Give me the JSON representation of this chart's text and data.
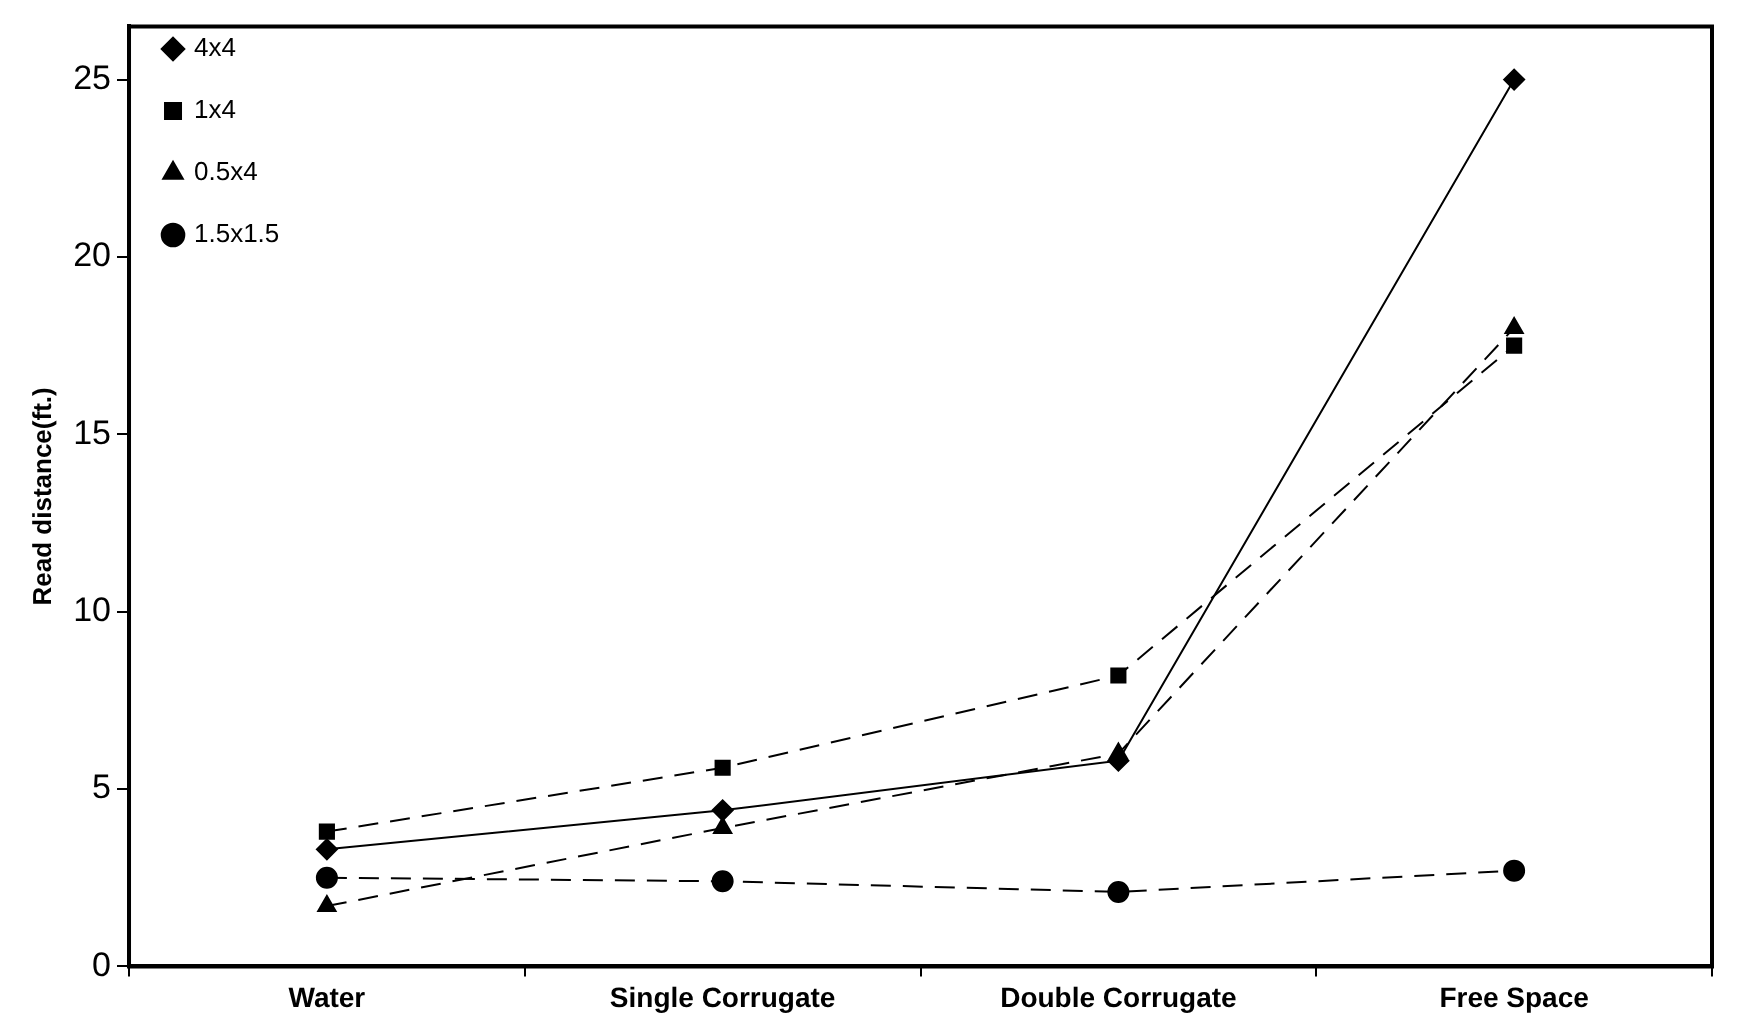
{
  "chart_data": {
    "type": "line",
    "ylabel": "Read distance(ft.)",
    "categories": [
      "Water",
      "Single Corrugate",
      "Double Corrugate",
      "Free Space"
    ],
    "series": [
      {
        "name": "4x4",
        "color": "#000000",
        "marker": "diamond",
        "line_style": "solid",
        "values": [
          3.3,
          4.4,
          5.8,
          25
        ]
      },
      {
        "name": "1x4",
        "color": "#000000",
        "marker": "square",
        "line_style": "dashed",
        "values": [
          3.8,
          5.6,
          8.2,
          17.5
        ]
      },
      {
        "name": "0.5x4",
        "color": "#000000",
        "marker": "triangle",
        "line_style": "dashed",
        "values": [
          1.7,
          3.9,
          6.0,
          18.0
        ]
      },
      {
        "name": "1.5x1.5",
        "color": "#000000",
        "marker": "circle",
        "line_style": "dashed",
        "values": [
          2.5,
          2.4,
          2.1,
          2.7
        ]
      }
    ],
    "ylim": [
      0,
      26.5
    ],
    "yticks": [
      0,
      5,
      10,
      15,
      20,
      25
    ],
    "grid": false,
    "legend": "top left"
  }
}
